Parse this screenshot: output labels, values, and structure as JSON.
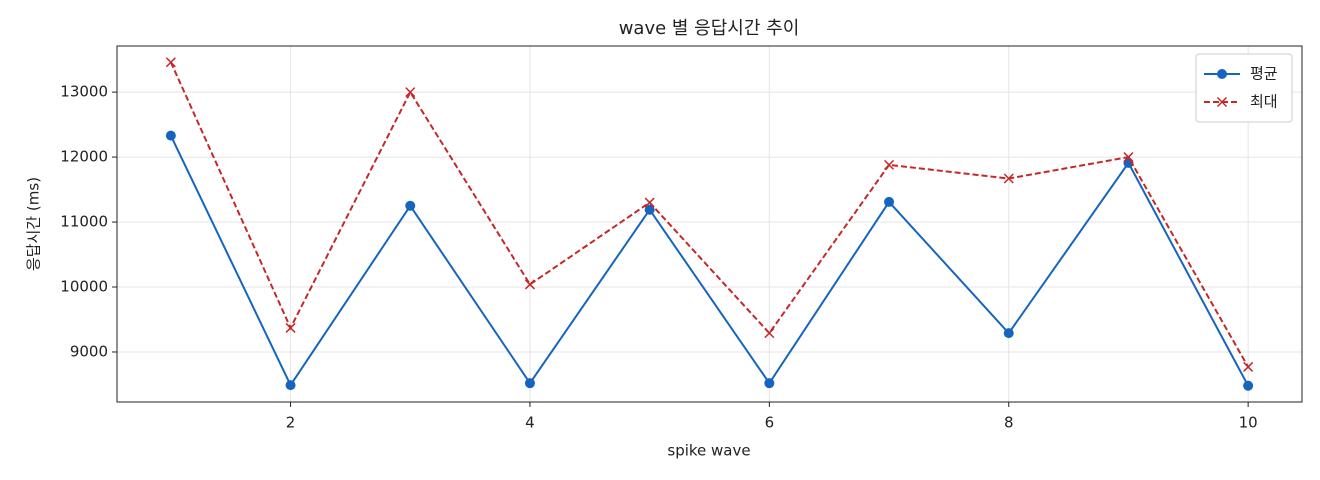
{
  "chart_data": {
    "type": "line",
    "title": "wave 별 응답시간 추이",
    "x_label": "spike wave",
    "y_label": "응답시간 (ms)",
    "x": [
      1,
      2,
      3,
      4,
      5,
      6,
      7,
      8,
      9,
      10
    ],
    "series": [
      {
        "name": "평균",
        "color": "#1565c0",
        "marker": "o",
        "dash": "solid",
        "values": [
          12330,
          8490,
          11250,
          8520,
          11190,
          8520,
          11310,
          9290,
          11910,
          8480
        ]
      },
      {
        "name": "최대",
        "color": "#c62828",
        "marker": "x",
        "dash": "dashed",
        "values": [
          13460,
          9370,
          13000,
          10040,
          11300,
          9290,
          11880,
          11670,
          12000,
          8770
        ]
      }
    ],
    "xlim": [
      0.55,
      10.45
    ],
    "ylim": [
      8230,
      13710
    ],
    "xticks": [
      2,
      4,
      6,
      8,
      10
    ],
    "yticks": [
      9000,
      10000,
      11000,
      12000,
      13000
    ],
    "grid": true,
    "legend": "upper right"
  }
}
